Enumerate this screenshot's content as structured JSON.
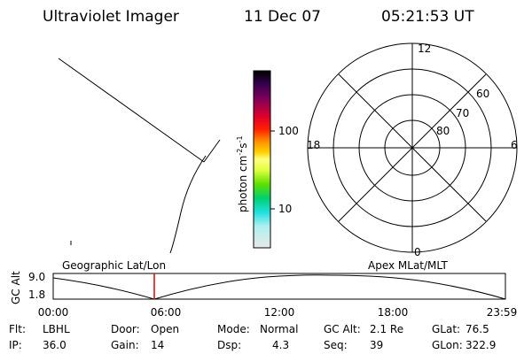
{
  "header": {
    "title": "Ultraviolet Imager",
    "date": "11 Dec 07",
    "time": "05:21:53 UT"
  },
  "colorbar": {
    "label": {
      "base": "photon cm",
      "exp1": "-2",
      "unit": "s",
      "exp2": "-1"
    },
    "ticks": [
      "100",
      "10"
    ]
  },
  "polar": {
    "hour_labels": [
      "12",
      "18",
      "6",
      "0"
    ],
    "lat_labels": [
      "60",
      "70",
      "80"
    ]
  },
  "panel_labels": {
    "left": "Geographic Lat/Lon",
    "right": "Apex MLat/MLT"
  },
  "timeline": {
    "axis_label": "GC Alt",
    "y_ticks": [
      "9.0",
      "1.8"
    ],
    "x_ticks": [
      "00:00",
      "06:00",
      "12:00",
      "18:00",
      "23:59"
    ]
  },
  "footer": {
    "rows": [
      [
        {
          "label": "Flt:",
          "value": "LBHL"
        },
        {
          "label": "Door:",
          "value": "Open"
        },
        {
          "label": "Mode:",
          "value": "Normal"
        },
        {
          "label": "GC Alt:",
          "value": "2.1 Re"
        },
        {
          "label": "GLat:",
          "value": "76.5"
        }
      ],
      [
        {
          "label": "IP:",
          "value": "36.0"
        },
        {
          "label": "Gain:",
          "value": "14"
        },
        {
          "label": "Dsp:",
          "value": "4.3"
        },
        {
          "label": "Seq:",
          "value": "39"
        },
        {
          "label": "GLon:",
          "value": "322.9"
        }
      ]
    ]
  }
}
